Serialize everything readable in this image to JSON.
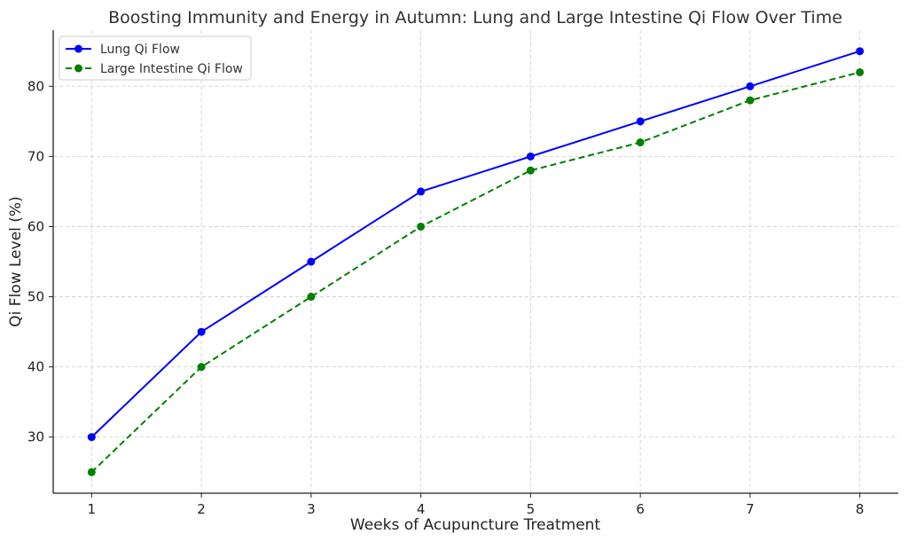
{
  "chart_data": {
    "type": "line",
    "title": "Boosting Immunity and Energy in Autumn: Lung and Large Intestine Qi Flow Over Time",
    "xlabel": "Weeks of Acupuncture Treatment",
    "ylabel": "Qi Flow Level (%)",
    "x": [
      1,
      2,
      3,
      4,
      5,
      6,
      7,
      8
    ],
    "xlim": [
      0.65,
      8.35
    ],
    "ylim": [
      22,
      88
    ],
    "yticks": [
      30,
      40,
      50,
      60,
      70,
      80
    ],
    "grid": true,
    "legend_position": "top-left",
    "series": [
      {
        "name": "Lung Qi Flow",
        "values": [
          30,
          45,
          55,
          65,
          70,
          75,
          80,
          85
        ],
        "color": "#0000ff",
        "line_style": "solid",
        "marker": "circle"
      },
      {
        "name": "Large Intestine Qi Flow",
        "values": [
          25,
          40,
          50,
          60,
          68,
          72,
          78,
          82
        ],
        "color": "#008000",
        "line_style": "dashed",
        "marker": "circle"
      }
    ]
  }
}
